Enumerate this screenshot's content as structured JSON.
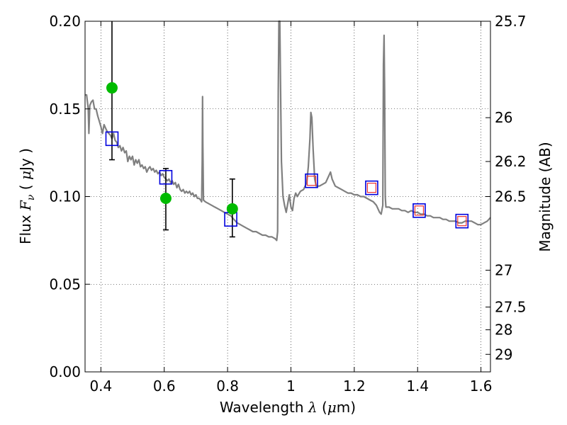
{
  "chart_data": {
    "type": "scatter",
    "xlabel": {
      "text": "Wavelength",
      "symbol": "λ",
      "unit_open": " (",
      "unit_mu": "μ",
      "unit_rest": "m)"
    },
    "ylabel": {
      "text": "Flux",
      "symbol": "F",
      "sub": "ν",
      "unit_open": " ( ",
      "unit_mu": "μ",
      "unit_rest": "Jy )"
    },
    "y2label": "Magnitude (AB)",
    "xlim": [
      0.35,
      1.63
    ],
    "ylim": [
      0.0,
      0.2
    ],
    "x_ticks": [
      0.4,
      0.6,
      0.8,
      1.0,
      1.2,
      1.4,
      1.6
    ],
    "x_tick_labels": [
      "0.4",
      "0.6",
      "0.8",
      "1",
      "1.2",
      "1.4",
      "1.6"
    ],
    "y_ticks": [
      0.0,
      0.05,
      0.1,
      0.15,
      0.2
    ],
    "y_tick_labels": [
      "0.00",
      "0.05",
      "0.10",
      "0.15",
      "0.20"
    ],
    "y2_ticks": [
      {
        "flux": 0.2,
        "label": "25.7"
      },
      {
        "flux": 0.145,
        "label": "26"
      },
      {
        "flux": 0.12,
        "label": "26.2"
      },
      {
        "flux": 0.1,
        "label": "26.5"
      },
      {
        "flux": 0.058,
        "label": "27"
      },
      {
        "flux": 0.037,
        "label": "27.5"
      },
      {
        "flux": 0.024,
        "label": "28"
      },
      {
        "flux": 0.01,
        "label": "29"
      }
    ],
    "grid": true,
    "colors": {
      "model": "#808080",
      "observed": "#00bb00",
      "model_phot": "#0000dd",
      "inner_phot": "#ee3333",
      "errorbar": "#000000"
    },
    "model_spectrum": [
      [
        0.35,
        0.158
      ],
      [
        0.355,
        0.158
      ],
      [
        0.36,
        0.15
      ],
      [
        0.362,
        0.136
      ],
      [
        0.365,
        0.152
      ],
      [
        0.37,
        0.154
      ],
      [
        0.375,
        0.155
      ],
      [
        0.38,
        0.15
      ],
      [
        0.385,
        0.15
      ],
      [
        0.39,
        0.146
      ],
      [
        0.395,
        0.143
      ],
      [
        0.4,
        0.14
      ],
      [
        0.405,
        0.136
      ],
      [
        0.41,
        0.141
      ],
      [
        0.415,
        0.139
      ],
      [
        0.42,
        0.137
      ],
      [
        0.425,
        0.136
      ],
      [
        0.43,
        0.135
      ],
      [
        0.435,
        0.133
      ],
      [
        0.44,
        0.136
      ],
      [
        0.445,
        0.132
      ],
      [
        0.45,
        0.131
      ],
      [
        0.455,
        0.128
      ],
      [
        0.46,
        0.129
      ],
      [
        0.465,
        0.126
      ],
      [
        0.47,
        0.128
      ],
      [
        0.475,
        0.125
      ],
      [
        0.48,
        0.126
      ],
      [
        0.485,
        0.12
      ],
      [
        0.49,
        0.123
      ],
      [
        0.495,
        0.121
      ],
      [
        0.5,
        0.123
      ],
      [
        0.505,
        0.118
      ],
      [
        0.51,
        0.121
      ],
      [
        0.515,
        0.119
      ],
      [
        0.52,
        0.121
      ],
      [
        0.525,
        0.117
      ],
      [
        0.53,
        0.118
      ],
      [
        0.535,
        0.116
      ],
      [
        0.54,
        0.117
      ],
      [
        0.545,
        0.114
      ],
      [
        0.55,
        0.116
      ],
      [
        0.555,
        0.117
      ],
      [
        0.56,
        0.115
      ],
      [
        0.565,
        0.116
      ],
      [
        0.57,
        0.114
      ],
      [
        0.575,
        0.115
      ],
      [
        0.58,
        0.113
      ],
      [
        0.585,
        0.114
      ],
      [
        0.59,
        0.112
      ],
      [
        0.595,
        0.113
      ],
      [
        0.6,
        0.111
      ],
      [
        0.605,
        0.11
      ],
      [
        0.61,
        0.109
      ],
      [
        0.615,
        0.11
      ],
      [
        0.62,
        0.108
      ],
      [
        0.625,
        0.109
      ],
      [
        0.63,
        0.107
      ],
      [
        0.635,
        0.108
      ],
      [
        0.64,
        0.105
      ],
      [
        0.645,
        0.107
      ],
      [
        0.65,
        0.104
      ],
      [
        0.655,
        0.103
      ],
      [
        0.66,
        0.104
      ],
      [
        0.665,
        0.102
      ],
      [
        0.67,
        0.103
      ],
      [
        0.675,
        0.102
      ],
      [
        0.68,
        0.103
      ],
      [
        0.685,
        0.101
      ],
      [
        0.69,
        0.102
      ],
      [
        0.695,
        0.1
      ],
      [
        0.7,
        0.101
      ],
      [
        0.705,
        0.099
      ],
      [
        0.71,
        0.099
      ],
      [
        0.715,
        0.098
      ],
      [
        0.718,
        0.097
      ],
      [
        0.72,
        0.12
      ],
      [
        0.721,
        0.157
      ],
      [
        0.722,
        0.13
      ],
      [
        0.724,
        0.098
      ],
      [
        0.73,
        0.097
      ],
      [
        0.74,
        0.096
      ],
      [
        0.75,
        0.095
      ],
      [
        0.76,
        0.094
      ],
      [
        0.77,
        0.093
      ],
      [
        0.78,
        0.092
      ],
      [
        0.79,
        0.091
      ],
      [
        0.8,
        0.09
      ],
      [
        0.81,
        0.089
      ],
      [
        0.82,
        0.087
      ],
      [
        0.83,
        0.085
      ],
      [
        0.84,
        0.084
      ],
      [
        0.85,
        0.083
      ],
      [
        0.86,
        0.082
      ],
      [
        0.87,
        0.081
      ],
      [
        0.88,
        0.08
      ],
      [
        0.89,
        0.08
      ],
      [
        0.9,
        0.079
      ],
      [
        0.91,
        0.078
      ],
      [
        0.92,
        0.078
      ],
      [
        0.93,
        0.077
      ],
      [
        0.94,
        0.077
      ],
      [
        0.95,
        0.076
      ],
      [
        0.955,
        0.075
      ],
      [
        0.958,
        0.08
      ],
      [
        0.96,
        0.16
      ],
      [
        0.962,
        0.2
      ],
      [
        0.965,
        0.2
      ],
      [
        0.968,
        0.15
      ],
      [
        0.97,
        0.12
      ],
      [
        0.975,
        0.1
      ],
      [
        0.98,
        0.095
      ],
      [
        0.985,
        0.091
      ],
      [
        0.99,
        0.096
      ],
      [
        0.995,
        0.101
      ],
      [
        1.0,
        0.094
      ],
      [
        1.005,
        0.092
      ],
      [
        1.01,
        0.099
      ],
      [
        1.015,
        0.102
      ],
      [
        1.02,
        0.1
      ],
      [
        1.03,
        0.103
      ],
      [
        1.04,
        0.104
      ],
      [
        1.05,
        0.108
      ],
      [
        1.055,
        0.117
      ],
      [
        1.06,
        0.133
      ],
      [
        1.063,
        0.148
      ],
      [
        1.066,
        0.145
      ],
      [
        1.07,
        0.127
      ],
      [
        1.075,
        0.11
      ],
      [
        1.08,
        0.106
      ],
      [
        1.09,
        0.106
      ],
      [
        1.1,
        0.107
      ],
      [
        1.11,
        0.108
      ],
      [
        1.12,
        0.112
      ],
      [
        1.125,
        0.114
      ],
      [
        1.13,
        0.11
      ],
      [
        1.14,
        0.106
      ],
      [
        1.15,
        0.105
      ],
      [
        1.16,
        0.104
      ],
      [
        1.17,
        0.103
      ],
      [
        1.18,
        0.102
      ],
      [
        1.19,
        0.102
      ],
      [
        1.2,
        0.101
      ],
      [
        1.21,
        0.101
      ],
      [
        1.22,
        0.1
      ],
      [
        1.23,
        0.1
      ],
      [
        1.24,
        0.099
      ],
      [
        1.25,
        0.098
      ],
      [
        1.26,
        0.097
      ],
      [
        1.27,
        0.095
      ],
      [
        1.28,
        0.091
      ],
      [
        1.285,
        0.09
      ],
      [
        1.29,
        0.095
      ],
      [
        1.292,
        0.175
      ],
      [
        1.294,
        0.192
      ],
      [
        1.296,
        0.16
      ],
      [
        1.298,
        0.1
      ],
      [
        1.3,
        0.094
      ],
      [
        1.31,
        0.094
      ],
      [
        1.32,
        0.093
      ],
      [
        1.33,
        0.093
      ],
      [
        1.34,
        0.093
      ],
      [
        1.35,
        0.092
      ],
      [
        1.36,
        0.092
      ],
      [
        1.37,
        0.091
      ],
      [
        1.38,
        0.092
      ],
      [
        1.39,
        0.091
      ],
      [
        1.4,
        0.091
      ],
      [
        1.41,
        0.09
      ],
      [
        1.42,
        0.09
      ],
      [
        1.43,
        0.089
      ],
      [
        1.44,
        0.089
      ],
      [
        1.45,
        0.088
      ],
      [
        1.46,
        0.088
      ],
      [
        1.47,
        0.088
      ],
      [
        1.48,
        0.087
      ],
      [
        1.49,
        0.087
      ],
      [
        1.5,
        0.086
      ],
      [
        1.51,
        0.086
      ],
      [
        1.52,
        0.086
      ],
      [
        1.53,
        0.085
      ],
      [
        1.54,
        0.085
      ],
      [
        1.55,
        0.086
      ],
      [
        1.56,
        0.086
      ],
      [
        1.57,
        0.086
      ],
      [
        1.58,
        0.085
      ],
      [
        1.59,
        0.084
      ],
      [
        1.6,
        0.084
      ],
      [
        1.61,
        0.085
      ],
      [
        1.62,
        0.086
      ],
      [
        1.63,
        0.088
      ]
    ],
    "observed": [
      {
        "x": 0.435,
        "y": 0.162,
        "yerr_low": 0.121,
        "yerr_high": 0.2
      },
      {
        "x": 0.605,
        "y": 0.099,
        "yerr_low": 0.081,
        "yerr_high": 0.116
      },
      {
        "x": 0.815,
        "y": 0.093,
        "yerr_low": 0.077,
        "yerr_high": 0.11
      }
    ],
    "model_photometry": [
      {
        "x": 0.435,
        "y": 0.133
      },
      {
        "x": 0.605,
        "y": 0.111
      },
      {
        "x": 0.81,
        "y": 0.087
      },
      {
        "x": 1.065,
        "y": 0.109
      },
      {
        "x": 1.255,
        "y": 0.105
      },
      {
        "x": 1.405,
        "y": 0.092
      },
      {
        "x": 1.54,
        "y": 0.086
      }
    ],
    "inner_photometry": [
      {
        "x": 1.065,
        "y": 0.109
      },
      {
        "x": 1.255,
        "y": 0.105
      },
      {
        "x": 1.405,
        "y": 0.092
      },
      {
        "x": 1.54,
        "y": 0.086
      }
    ]
  }
}
